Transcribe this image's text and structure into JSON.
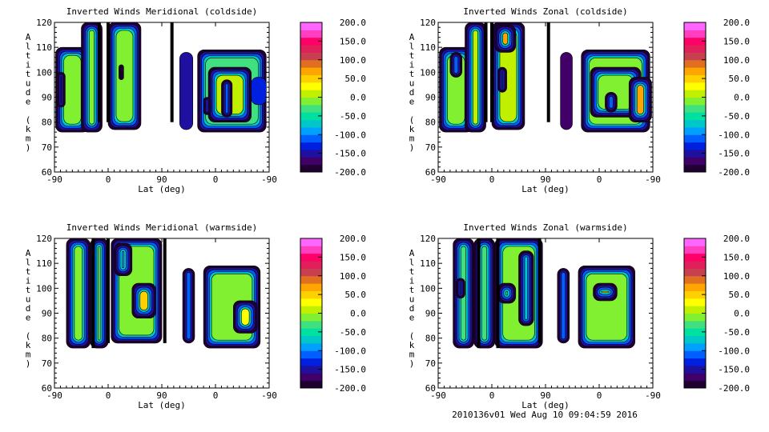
{
  "chart_data": [
    {
      "type": "heatmap",
      "title": "Inverted Winds Meridional (coldside)",
      "xlabel": "Lat (deg)",
      "ylabel": "Altitude (km)",
      "xticks": [
        "-90",
        "0",
        "90",
        "0",
        "-90"
      ],
      "yticks": [
        "60",
        "70",
        "80",
        "90",
        "100",
        "110",
        "120"
      ],
      "ylim": [
        60,
        120
      ],
      "colorbar": {
        "min": -200,
        "max": 200,
        "ticks": [
          "200.0",
          "150.0",
          "100.0",
          "50.0",
          "0.0",
          "-50.0",
          "-100.0",
          "-150.0",
          "-200.0"
        ]
      },
      "regions": [
        [
          2,
          58,
          76,
          110,
          -20
        ],
        [
          45,
          80,
          76,
          120,
          -10
        ],
        [
          90,
          145,
          77,
          120,
          -5
        ],
        [
          108,
          116,
          97,
          103,
          60
        ],
        [
          4,
          18,
          86,
          100,
          70
        ],
        [
          240,
          355,
          76,
          109,
          -40
        ],
        [
          258,
          330,
          80,
          102,
          0
        ],
        [
          280,
          298,
          82,
          97,
          40
        ],
        [
          250,
          262,
          83,
          90,
          90
        ],
        [
          330,
          355,
          87,
          98,
          -130
        ],
        [
          210,
          232,
          77,
          108,
          -160
        ]
      ],
      "lines": [
        [
          75,
          80,
          120
        ],
        [
          90,
          80,
          120
        ],
        [
          197,
          80,
          120
        ]
      ]
    },
    {
      "type": "heatmap",
      "title": "Inverted Winds Zonal (coldside)",
      "xlabel": "Lat (deg)",
      "ylabel": "Altitude (km)",
      "xticks": [
        "-90",
        "0",
        "90",
        "0",
        "-90"
      ],
      "yticks": [
        "60",
        "70",
        "80",
        "90",
        "100",
        "110",
        "120"
      ],
      "ylim": [
        60,
        120
      ],
      "colorbar": {
        "min": -200,
        "max": 200,
        "ticks": [
          "200.0",
          "150.0",
          "100.0",
          "50.0",
          "0.0",
          "-50.0",
          "-100.0",
          "-150.0",
          "-200.0"
        ]
      },
      "regions": [
        [
          2,
          58,
          76,
          110,
          -10
        ],
        [
          45,
          80,
          76,
          120,
          10
        ],
        [
          90,
          145,
          77,
          120,
          10
        ],
        [
          20,
          40,
          98,
          108,
          50
        ],
        [
          95,
          130,
          108,
          119,
          60
        ],
        [
          100,
          115,
          92,
          102,
          60
        ],
        [
          240,
          355,
          76,
          109,
          -20
        ],
        [
          255,
          340,
          82,
          102,
          -5
        ],
        [
          320,
          358,
          80,
          98,
          60
        ],
        [
          280,
          300,
          84,
          92,
          40
        ],
        [
          205,
          225,
          77,
          108,
          -170
        ]
      ],
      "lines": [
        [
          80,
          80,
          120
        ],
        [
          90,
          80,
          120
        ],
        [
          185,
          80,
          120
        ]
      ]
    },
    {
      "type": "heatmap",
      "title": "Inverted Winds Meridional (warmside)",
      "xlabel": "Lat (deg)",
      "ylabel": "Altitude (km)",
      "xticks": [
        "-90",
        "0",
        "90",
        "0",
        "-90"
      ],
      "yticks": [
        "60",
        "70",
        "80",
        "90",
        "100",
        "110",
        "120"
      ],
      "ylim": [
        60,
        120
      ],
      "colorbar": {
        "min": -200,
        "max": 200,
        "ticks": [
          "200.0",
          "150.0",
          "100.0",
          "50.0",
          "0.0",
          "-50.0",
          "-100.0",
          "-150.0",
          "-200.0"
        ]
      },
      "regions": [
        [
          20,
          60,
          76,
          120,
          -10
        ],
        [
          60,
          90,
          76,
          120,
          -20
        ],
        [
          95,
          180,
          78,
          120,
          -10
        ],
        [
          130,
          170,
          88,
          102,
          50
        ],
        [
          100,
          130,
          105,
          118,
          -90
        ],
        [
          215,
          235,
          78,
          108,
          -40
        ],
        [
          250,
          345,
          76,
          109,
          -20
        ],
        [
          300,
          340,
          82,
          95,
          20
        ]
      ],
      "lines": [
        [
          65,
          76,
          120
        ],
        [
          90,
          78,
          120
        ],
        [
          185,
          78,
          120
        ]
      ]
    },
    {
      "type": "heatmap",
      "title": "Inverted Winds Zonal (warmside)",
      "xlabel": "Lat (deg)",
      "ylabel": "Altitude (km)",
      "xticks": [
        "-90",
        "0",
        "90",
        "0",
        "-90"
      ],
      "yticks": [
        "60",
        "70",
        "80",
        "90",
        "100",
        "110",
        "120"
      ],
      "ylim": [
        60,
        120
      ],
      "colorbar": {
        "min": -200,
        "max": 200,
        "ticks": [
          "200.0",
          "150.0",
          "100.0",
          "50.0",
          "0.0",
          "-50.0",
          "-100.0",
          "-150.0",
          "-200.0"
        ]
      },
      "regions": [
        [
          25,
          60,
          76,
          120,
          -30
        ],
        [
          60,
          95,
          76,
          120,
          -30
        ],
        [
          95,
          175,
          76,
          120,
          -10
        ],
        [
          30,
          45,
          96,
          104,
          60
        ],
        [
          100,
          130,
          94,
          102,
          -60
        ],
        [
          135,
          160,
          85,
          115,
          40
        ],
        [
          200,
          220,
          78,
          108,
          -60
        ],
        [
          235,
          330,
          76,
          109,
          -10
        ],
        [
          260,
          300,
          95,
          102,
          40
        ]
      ],
      "lines": [
        [
          68,
          76,
          120
        ],
        [
          100,
          76,
          120
        ],
        [
          170,
          78,
          120
        ]
      ]
    }
  ],
  "footer": "2010136v01 Wed Aug 10 09:04:59 2016"
}
